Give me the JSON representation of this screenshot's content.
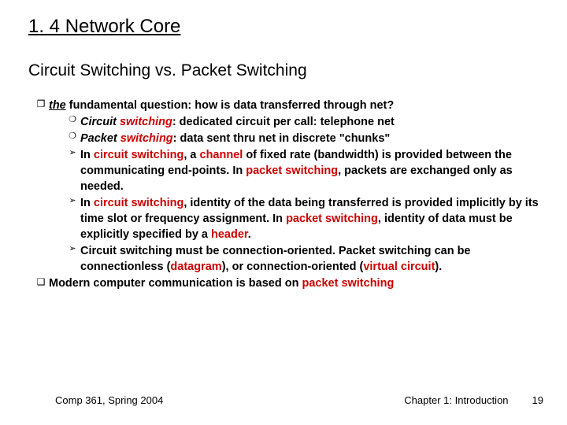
{
  "title": "1. 4 Network Core",
  "subtitle": "Circuit Switching vs. Packet Switching",
  "colors": {
    "red": "#cc0000",
    "text": "#000000",
    "bg": "#ffffff"
  },
  "bullets": {
    "level1_open": "❒",
    "level1_closed": "❑",
    "level2_circle": "❍",
    "level2_arrow": "➢"
  },
  "content": {
    "q1_pre": "the",
    "q1_post": " fundamental question: how is data transferred through net?",
    "c1_a": "Circuit ",
    "c1_b": "switching",
    "c1_c": ": dedicated circuit per call: telephone net",
    "c2_a": "Packet ",
    "c2_b": "switching",
    "c2_c": ": data sent thru net in discrete \"chunks\"",
    "a1_a": "In ",
    "a1_b": "circuit switching",
    "a1_c": ", a ",
    "a1_d": "channel",
    "a1_e": " of fixed rate (bandwidth) is provided between the communicating end-points. In ",
    "a1_f": "packet switching",
    "a1_g": ", packets are exchanged only as needed.",
    "a2_a": "In ",
    "a2_b": "circuit switching",
    "a2_c": ", identity of the data being transferred is provided implicitly by its time slot or frequency assignment. In ",
    "a2_d": "packet switching",
    "a2_e": ", identity of data must be explicitly specified by a ",
    "a2_f": "header",
    "a2_g": ".",
    "a3_a": "Circuit switching must be connection-oriented. Packet switching can be connectionless (",
    "a3_b": "datagram",
    "a3_c": "), or connection-oriented (",
    "a3_d": "virtual circuit",
    "a3_e": ").",
    "q2_a": "Modern computer communication is based on ",
    "q2_b": "packet switching"
  },
  "footer": {
    "left": "Comp 361,    Spring 2004",
    "chapter": "Chapter 1: Introduction",
    "page": "19"
  },
  "fontsize": {
    "title": 24,
    "subtitle": 21,
    "body": 14.5,
    "footer": 13
  }
}
